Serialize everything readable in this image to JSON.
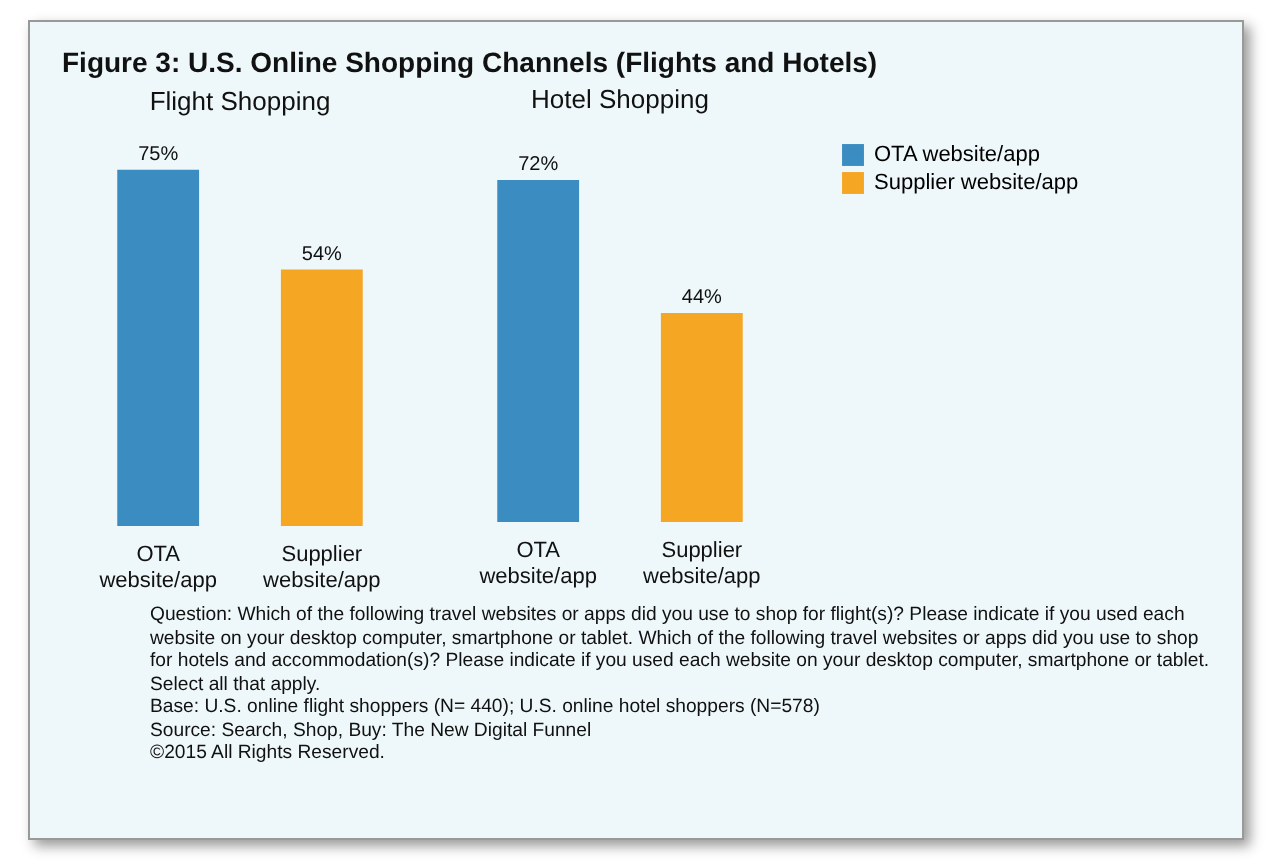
{
  "chart_data": [
    {
      "type": "bar",
      "title": "Figure 3: U.S. Online Shopping Channels (Flights and Hotels)",
      "subtitle": "Flight Shopping",
      "categories": [
        "OTA website/app",
        "Supplier website/app"
      ],
      "series": [
        {
          "color": "#3b8cc0",
          "values": [
            75,
            null
          ],
          "value_labels": [
            "75%",
            null
          ]
        },
        {
          "color": "#f5a623",
          "values": [
            null,
            54
          ],
          "value_labels": [
            null,
            "54%"
          ]
        }
      ],
      "legend": false
    },
    {
      "type": "bar",
      "title": "Hotel Shopping",
      "categories": [
        "OTA website/app",
        "Supplier website/app"
      ],
      "series": [
        {
          "name": "OTA website/app",
          "color": "#3b8cc0",
          "values": [
            72,
            null
          ],
          "value_labels": [
            "72%",
            null
          ]
        },
        {
          "name": "Supplier website/app",
          "color": "#f5a623",
          "values": [
            null,
            44
          ],
          "value_labels": [
            null,
            "44%"
          ]
        }
      ],
      "legend": "right",
      "annotations": [
        "Question: Which of the following travel websites or apps did you use to shop for flight(s)? Please indicate if you used each website on your desktop computer, smartphone or tablet. Which of the following travel websites or apps did you use to shop for hotels and accommodation(s)? Please indicate if you used each website on your desktop computer, smartphone or tablet. Select all that apply.",
        "Base: U.S. online flight shoppers (N= 440); U.S. online hotel shoppers (N=578)",
        "Source: Search, Shop, Buy: The New Digital Funnel",
        "©2015 All Rights Reserved."
      ]
    }
  ]
}
